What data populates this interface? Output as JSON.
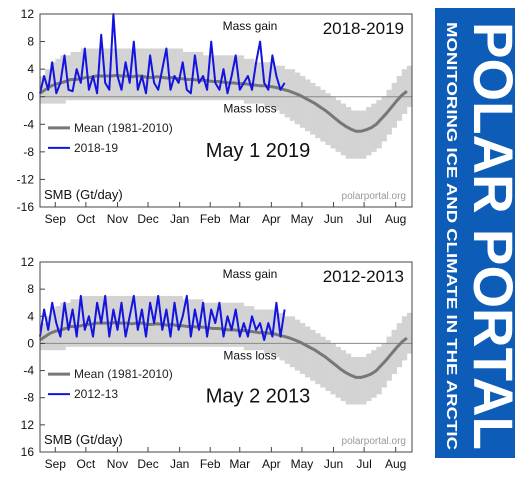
{
  "chart_data": [
    {
      "type": "line",
      "title": "2018-2019",
      "date": "May 1 2019",
      "annotations": [
        "Mass gain",
        "Mass loss"
      ],
      "ylabel": "SMB (Gt/day)",
      "source": "polarportal.org",
      "legend": "center left",
      "xlim": [
        0,
        365
      ],
      "ylim": [
        -16,
        12
      ],
      "yticks": [
        12,
        8,
        4,
        0,
        -4,
        -8,
        -12,
        -16
      ],
      "xticks": [
        {
          "value": 15,
          "label": "Sep"
        },
        {
          "value": 45,
          "label": "Oct"
        },
        {
          "value": 76,
          "label": "Nov"
        },
        {
          "value": 106,
          "label": "Dec"
        },
        {
          "value": 137,
          "label": "Jan"
        },
        {
          "value": 167,
          "label": "Feb"
        },
        {
          "value": 196,
          "label": "Mar"
        },
        {
          "value": 227,
          "label": "Apr"
        },
        {
          "value": 257,
          "label": "May"
        },
        {
          "value": 288,
          "label": "Jun"
        },
        {
          "value": 318,
          "label": "Jul"
        },
        {
          "value": 349,
          "label": "Aug"
        }
      ],
      "x": [
        0,
        5,
        10,
        15,
        20,
        25,
        30,
        35,
        40,
        45,
        50,
        55,
        60,
        65,
        70,
        75,
        80,
        85,
        90,
        95,
        100,
        105,
        110,
        115,
        120,
        125,
        130,
        135,
        140,
        145,
        150,
        155,
        160,
        165,
        170,
        175,
        180,
        185,
        190,
        195,
        200,
        205,
        210,
        215,
        220,
        225,
        230,
        235,
        240,
        245,
        250,
        255,
        260,
        265,
        270,
        275,
        280,
        285,
        290,
        295,
        300,
        305,
        310,
        315,
        320,
        325,
        330,
        335,
        340,
        345,
        350,
        355,
        360
      ],
      "band": {
        "color": "#d3d3d3",
        "upper": [
          3,
          4,
          5,
          5.5,
          6,
          6,
          6.5,
          6.5,
          7,
          7,
          7,
          7,
          7,
          7,
          7,
          7,
          7,
          7,
          7,
          7,
          7,
          7,
          7,
          7,
          7,
          7,
          7,
          7,
          6.5,
          6.5,
          6.5,
          6.5,
          6,
          6,
          6,
          6,
          6,
          6,
          6,
          6,
          5.5,
          5.5,
          5,
          5,
          5,
          5,
          4.5,
          4.5,
          4,
          4,
          3.5,
          3,
          2.5,
          2,
          1.5,
          1,
          0.5,
          0,
          -0.5,
          -1,
          -1.5,
          -2,
          -2,
          -2,
          -1.5,
          -1,
          -0.5,
          0,
          1,
          2,
          3,
          4,
          4.5
        ],
        "lower": [
          -1,
          -1,
          -1,
          -1,
          -1,
          -0.5,
          -0.5,
          -0.5,
          -0.5,
          -0.5,
          -0.5,
          -0.5,
          -0.5,
          -0.5,
          -0.5,
          -0.5,
          -0.5,
          -0.5,
          -0.5,
          -0.5,
          -0.5,
          -0.5,
          -0.5,
          -0.5,
          -0.5,
          -0.5,
          -0.5,
          -0.5,
          -0.5,
          -0.5,
          -0.5,
          -0.5,
          -0.5,
          -0.5,
          -0.5,
          -0.5,
          -0.5,
          -0.5,
          -0.5,
          -0.5,
          -1,
          -1,
          -1,
          -1,
          -1.5,
          -1.5,
          -2,
          -2.5,
          -3,
          -3.5,
          -4,
          -4.5,
          -5,
          -5.5,
          -6,
          -6.5,
          -7,
          -7.5,
          -8,
          -8.5,
          -9,
          -9,
          -9,
          -9,
          -8.5,
          -8,
          -7.5,
          -6.5,
          -5.5,
          -4.5,
          -3.5,
          -2.5,
          -1.5
        ]
      },
      "series": [
        {
          "name": "Mean (1981-2010)",
          "color": "#777777",
          "width": 3,
          "values": [
            0.5,
            1,
            1.5,
            1.8,
            2,
            2.2,
            2.5,
            2.5,
            2.6,
            2.8,
            2.8,
            3,
            3,
            3,
            3,
            3.1,
            3,
            3,
            2.9,
            3,
            3,
            2.8,
            2.8,
            2.9,
            2.8,
            2.7,
            2.8,
            2.6,
            2.6,
            2.5,
            2.5,
            2.4,
            2.4,
            2.3,
            2.2,
            2.2,
            2.1,
            2,
            2,
            1.9,
            1.9,
            1.8,
            1.7,
            1.6,
            1.6,
            1.5,
            1.4,
            1.2,
            1,
            0.8,
            0.5,
            0.2,
            -0.2,
            -0.6,
            -1,
            -1.5,
            -2,
            -2.6,
            -3.2,
            -3.8,
            -4.3,
            -4.7,
            -5,
            -5,
            -4.8,
            -4.5,
            -4,
            -3.2,
            -2.4,
            -1.5,
            -0.6,
            0.2,
            0.8
          ]
        },
        {
          "name": "2018-19",
          "color": "#1414e0",
          "width": 2,
          "x": [
            0,
            4,
            8,
            12,
            16,
            20,
            24,
            28,
            32,
            36,
            40,
            44,
            48,
            52,
            56,
            60,
            64,
            68,
            72,
            76,
            80,
            84,
            88,
            92,
            96,
            100,
            104,
            108,
            112,
            116,
            120,
            124,
            128,
            132,
            136,
            140,
            144,
            148,
            152,
            156,
            160,
            164,
            168,
            172,
            176,
            180,
            184,
            188,
            192,
            196,
            200,
            204,
            208,
            212,
            216,
            220,
            224,
            228,
            232,
            236,
            240
          ],
          "values": [
            0.5,
            3,
            1,
            5,
            0.5,
            2,
            6,
            1,
            0.8,
            4,
            2,
            7,
            1,
            3,
            0.5,
            9,
            2,
            1,
            12,
            3,
            1,
            5,
            2,
            8,
            1,
            3,
            0.5,
            6,
            2,
            1,
            4,
            7,
            1,
            3,
            2,
            5,
            1,
            0.5,
            6,
            2,
            3,
            1,
            8,
            2,
            1,
            4,
            0.5,
            3,
            6,
            1,
            2,
            3,
            1,
            5,
            8,
            2,
            1,
            6,
            3,
            1,
            2
          ]
        }
      ]
    },
    {
      "type": "line",
      "title": "2012-2013",
      "date": "May 2 2013",
      "annotations": [
        "Mass gain",
        "Mass loss"
      ],
      "ylabel": "SMB (Gt/day)",
      "source": "polarportal.org",
      "legend": "center left",
      "xlim": [
        0,
        365
      ],
      "ylim": [
        -16,
        12
      ],
      "yticks": [
        12,
        8,
        4,
        0,
        -4,
        -8,
        {
          "value": -12,
          "label": "12"
        },
        {
          "value": -16,
          "label": "16"
        }
      ],
      "xticks": [
        {
          "value": 15,
          "label": "Sep"
        },
        {
          "value": 45,
          "label": "Oct"
        },
        {
          "value": 76,
          "label": "Nov"
        },
        {
          "value": 106,
          "label": "Dec"
        },
        {
          "value": 137,
          "label": "Jan"
        },
        {
          "value": 167,
          "label": "Feb"
        },
        {
          "value": 196,
          "label": "Mar"
        },
        {
          "value": 227,
          "label": "Apr"
        },
        {
          "value": 257,
          "label": "May"
        },
        {
          "value": 288,
          "label": "Jun"
        },
        {
          "value": 318,
          "label": "Jul"
        },
        {
          "value": 349,
          "label": "Aug"
        }
      ],
      "x": [
        0,
        5,
        10,
        15,
        20,
        25,
        30,
        35,
        40,
        45,
        50,
        55,
        60,
        65,
        70,
        75,
        80,
        85,
        90,
        95,
        100,
        105,
        110,
        115,
        120,
        125,
        130,
        135,
        140,
        145,
        150,
        155,
        160,
        165,
        170,
        175,
        180,
        185,
        190,
        195,
        200,
        205,
        210,
        215,
        220,
        225,
        230,
        235,
        240,
        245,
        250,
        255,
        260,
        265,
        270,
        275,
        280,
        285,
        290,
        295,
        300,
        305,
        310,
        315,
        320,
        325,
        330,
        335,
        340,
        345,
        350,
        355,
        360
      ],
      "band": {
        "color": "#d3d3d3",
        "upper": [
          3,
          4,
          5,
          5.5,
          6,
          6,
          6.5,
          6.5,
          7,
          7,
          7,
          7,
          7,
          7,
          7,
          7,
          7,
          7,
          7,
          7,
          7,
          7,
          7,
          7,
          7,
          7,
          7,
          7,
          6.5,
          6.5,
          6.5,
          6.5,
          6,
          6,
          6,
          6,
          6,
          6,
          6,
          6,
          5.5,
          5.5,
          5,
          5,
          5,
          5,
          4.5,
          4.5,
          4,
          4,
          3.5,
          3,
          2.5,
          2,
          1.5,
          1,
          0.5,
          0,
          -0.5,
          -1,
          -1.5,
          -2,
          -2,
          -2,
          -1.5,
          -1,
          -0.5,
          0,
          1,
          2,
          3,
          4,
          4.5
        ],
        "lower": [
          -1,
          -1,
          -1,
          -1,
          -1,
          -0.5,
          -0.5,
          -0.5,
          -0.5,
          -0.5,
          -0.5,
          -0.5,
          -0.5,
          -0.5,
          -0.5,
          -0.5,
          -0.5,
          -0.5,
          -0.5,
          -0.5,
          -0.5,
          -0.5,
          -0.5,
          -0.5,
          -0.5,
          -0.5,
          -0.5,
          -0.5,
          -0.5,
          -0.5,
          -0.5,
          -0.5,
          -0.5,
          -0.5,
          -0.5,
          -0.5,
          -0.5,
          -0.5,
          -0.5,
          -0.5,
          -1,
          -1,
          -1,
          -1,
          -1.5,
          -1.5,
          -2,
          -2.5,
          -3,
          -3.5,
          -4,
          -4.5,
          -5,
          -5.5,
          -6,
          -6.5,
          -7,
          -7.5,
          -8,
          -8.5,
          -9,
          -9,
          -9,
          -9,
          -8.5,
          -8,
          -7.5,
          -6.5,
          -5.5,
          -4.5,
          -3.5,
          -2.5,
          -1.5
        ]
      },
      "series": [
        {
          "name": "Mean (1981-2010)",
          "color": "#777777",
          "width": 3,
          "values": [
            0.5,
            1,
            1.5,
            1.8,
            2,
            2.2,
            2.5,
            2.5,
            2.6,
            2.8,
            2.8,
            3,
            3,
            3,
            3,
            3.1,
            3,
            3,
            2.9,
            3,
            3,
            2.8,
            2.8,
            2.9,
            2.8,
            2.7,
            2.8,
            2.6,
            2.6,
            2.5,
            2.5,
            2.4,
            2.4,
            2.3,
            2.2,
            2.2,
            2.1,
            2,
            2,
            1.9,
            1.9,
            1.8,
            1.7,
            1.6,
            1.6,
            1.5,
            1.4,
            1.2,
            1,
            0.8,
            0.5,
            0.2,
            -0.2,
            -0.6,
            -1,
            -1.5,
            -2,
            -2.6,
            -3.2,
            -3.8,
            -4.3,
            -4.7,
            -5,
            -5,
            -4.8,
            -4.5,
            -4,
            -3.2,
            -2.4,
            -1.5,
            -0.6,
            0.2,
            0.8
          ]
        },
        {
          "name": "2012-13",
          "color": "#1414e0",
          "width": 2,
          "x": [
            0,
            4,
            8,
            12,
            16,
            20,
            24,
            28,
            32,
            36,
            40,
            44,
            48,
            52,
            56,
            60,
            64,
            68,
            72,
            76,
            80,
            84,
            88,
            92,
            96,
            100,
            104,
            108,
            112,
            116,
            120,
            124,
            128,
            132,
            136,
            140,
            144,
            148,
            152,
            156,
            160,
            164,
            168,
            172,
            176,
            180,
            184,
            188,
            192,
            196,
            200,
            204,
            208,
            212,
            216,
            220,
            224,
            228,
            232,
            236,
            240
          ],
          "values": [
            1,
            5,
            2,
            6,
            3,
            1,
            6,
            2,
            5,
            1,
            7,
            2,
            4,
            1,
            6,
            3,
            7,
            1,
            5,
            2,
            6,
            1,
            4,
            7,
            2,
            5,
            1,
            6,
            3,
            7,
            2,
            5,
            1,
            6,
            2,
            4,
            7,
            1,
            5,
            2,
            6,
            1,
            5,
            3,
            6,
            1,
            4,
            2,
            5,
            1,
            3,
            1,
            4,
            2,
            3,
            0.5,
            3,
            1,
            6,
            1,
            5
          ]
        }
      ]
    }
  ],
  "logo": {
    "title": "POLAR PORTAL",
    "tagline": "MONITORING ICE AND CLIMATE IN THE ARCTIC"
  }
}
